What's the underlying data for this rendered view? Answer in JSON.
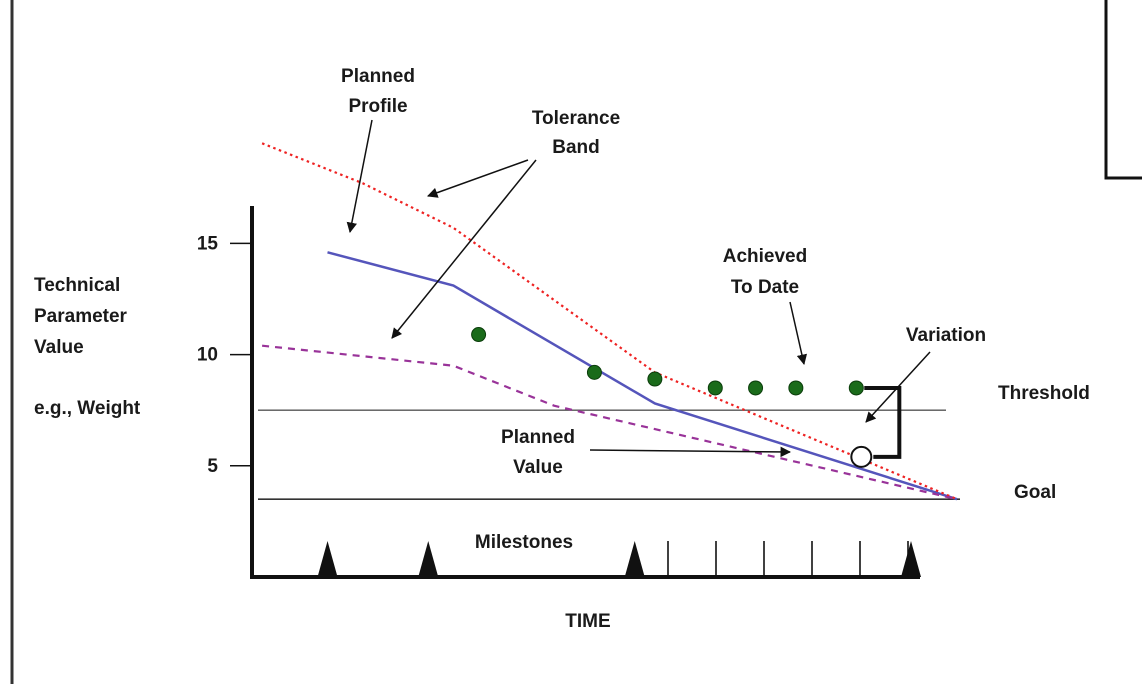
{
  "chart_data": {
    "type": "line",
    "title": "",
    "xlabel": "TIME",
    "ylabel_lines": [
      "Technical",
      "Parameter",
      "Value"
    ],
    "ylabel_example": "e.g., Weight",
    "y_ticks": [
      15,
      10,
      5
    ],
    "ylim": [
      0,
      16.5
    ],
    "xlim": [
      0,
      14
    ],
    "series": [
      {
        "name": "Planned Profile",
        "style": "solid",
        "color": "#5555bb",
        "x": [
          1.5,
          4,
          8,
          14
        ],
        "y": [
          14.6,
          13.1,
          7.8,
          3.5
        ]
      },
      {
        "name": "Tolerance Band upper",
        "style": "dotted",
        "color": "#ee2222",
        "x": [
          0.2,
          2.2,
          4,
          8,
          14
        ],
        "y": [
          19.5,
          17.7,
          15.7,
          9.2,
          3.5
        ]
      },
      {
        "name": "Tolerance Band lower",
        "style": "dashed",
        "color": "#993399",
        "x": [
          0.2,
          4,
          6,
          14
        ],
        "y": [
          10.4,
          9.5,
          7.7,
          3.5
        ]
      }
    ],
    "achieved_to_date": {
      "color": "#1a6b1a",
      "x": [
        4.5,
        6.8,
        8,
        9.2,
        10,
        10.8,
        12
      ],
      "y": [
        10.9,
        9.2,
        8.9,
        8.5,
        8.5,
        8.5,
        8.5
      ]
    },
    "planned_value_marker": {
      "x": 12.1,
      "y": 5.4
    },
    "threshold_y": 7.5,
    "goal_y": 3.5,
    "milestones_x": [
      1.5,
      3.5,
      7.6,
      14
    ],
    "time_ticks_x": [
      8.5,
      9.5,
      10.5,
      11.5,
      12.5,
      13.5
    ],
    "labels": {
      "planned_profile": [
        "Planned",
        "Profile"
      ],
      "tolerance_band": [
        "Tolerance",
        "Band"
      ],
      "achieved_to_date": [
        "Achieved",
        "To Date"
      ],
      "variation": "Variation",
      "threshold": "Threshold",
      "planned_value": [
        "Planned",
        "Value"
      ],
      "goal": "Goal",
      "milestones": "Milestones"
    }
  }
}
